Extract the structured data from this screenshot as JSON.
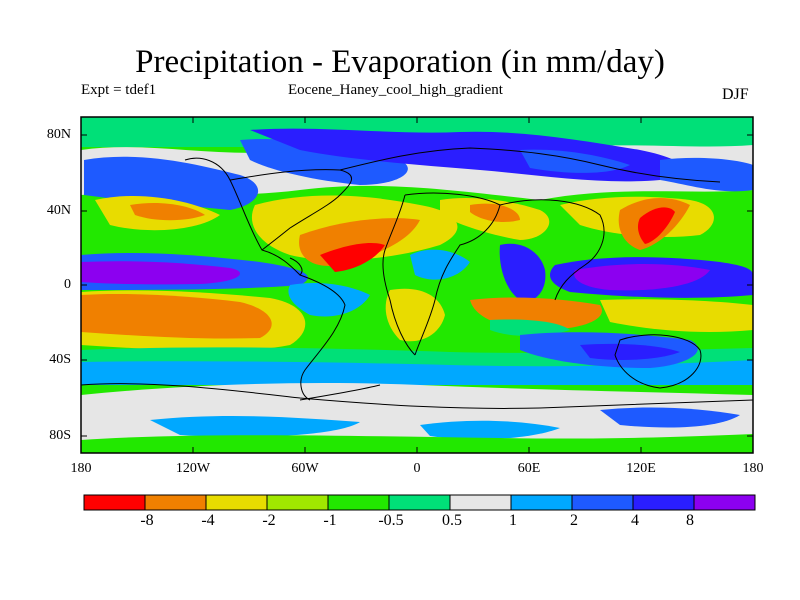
{
  "title": "Precipitation - Evaporation (in mm/day)",
  "experiment": "Expt = tdef1",
  "case_name": "Eocene_Haney_cool_high_gradient",
  "season": "DJF",
  "lat_labels": [
    "80N",
    "40N",
    "0",
    "40S",
    "80S"
  ],
  "lon_labels": [
    "180",
    "120W",
    "60W",
    "0",
    "60E",
    "120E",
    "180"
  ],
  "colorbar": {
    "colors": [
      "#ff0000",
      "#f08000",
      "#e8dc00",
      "#a0e800",
      "#22e800",
      "#00e078",
      "#e6e6e6",
      "#00a8ff",
      "#1e5aff",
      "#2a1eff",
      "#8c00f0"
    ],
    "labels": [
      "-8",
      "-4",
      "-2",
      "-1",
      "-0.5",
      "0.5",
      "1",
      "2",
      "4",
      "8"
    ]
  },
  "colors": {
    "land_outline": "#000000",
    "frame": "#000000"
  }
}
